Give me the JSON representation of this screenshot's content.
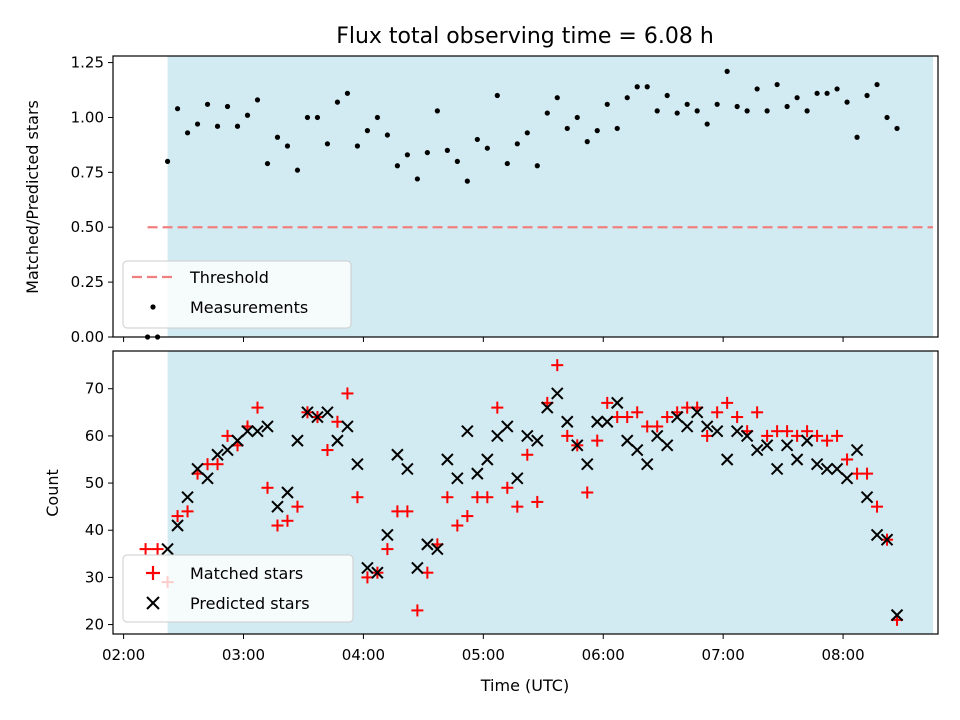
{
  "chart_data": [
    {
      "type": "scatter",
      "title": "Flux total observing time = 6.08 h",
      "ylabel": "Matched/Predicted stars",
      "xlabel": "",
      "xlim": [
        "02:00",
        "08:45"
      ],
      "ylim": [
        0,
        1.28
      ],
      "y_ticks": [
        "0.00",
        "0.25",
        "0.50",
        "0.75",
        "1.00",
        "1.25"
      ],
      "observing_window": [
        "02:22",
        "08:45"
      ],
      "legend_position": "lower-left",
      "colors": {
        "threshold": "#f08080",
        "measurements": "#000000",
        "window": "#add8e6"
      },
      "threshold": {
        "name": "Threshold",
        "value": 0.5,
        "x": [
          "02:12",
          "08:45"
        ]
      },
      "series": [
        {
          "name": "Measurements",
          "points": [
            [
              "02:12",
              0.0
            ],
            [
              "02:17",
              0.0
            ],
            [
              "02:22",
              0.8
            ],
            [
              "02:27",
              1.04
            ],
            [
              "02:32",
              0.93
            ],
            [
              "02:37",
              0.97
            ],
            [
              "02:42",
              1.06
            ],
            [
              "02:47",
              0.96
            ],
            [
              "02:52",
              1.05
            ],
            [
              "02:57",
              0.96
            ],
            [
              "03:02",
              1.01
            ],
            [
              "03:07",
              1.08
            ],
            [
              "03:12",
              0.79
            ],
            [
              "03:17",
              0.91
            ],
            [
              "03:22",
              0.87
            ],
            [
              "03:27",
              0.76
            ],
            [
              "03:32",
              1.0
            ],
            [
              "03:37",
              1.0
            ],
            [
              "03:42",
              0.88
            ],
            [
              "03:47",
              1.07
            ],
            [
              "03:52",
              1.11
            ],
            [
              "03:57",
              0.87
            ],
            [
              "04:02",
              0.94
            ],
            [
              "04:07",
              1.0
            ],
            [
              "04:12",
              0.92
            ],
            [
              "04:17",
              0.78
            ],
            [
              "04:22",
              0.83
            ],
            [
              "04:27",
              0.72
            ],
            [
              "04:32",
              0.84
            ],
            [
              "04:37",
              1.03
            ],
            [
              "04:42",
              0.85
            ],
            [
              "04:47",
              0.8
            ],
            [
              "04:52",
              0.71
            ],
            [
              "04:57",
              0.9
            ],
            [
              "05:02",
              0.86
            ],
            [
              "05:07",
              1.1
            ],
            [
              "05:12",
              0.79
            ],
            [
              "05:17",
              0.88
            ],
            [
              "05:22",
              0.93
            ],
            [
              "05:27",
              0.78
            ],
            [
              "05:32",
              1.02
            ],
            [
              "05:37",
              1.09
            ],
            [
              "05:42",
              0.95
            ],
            [
              "05:47",
              1.0
            ],
            [
              "05:52",
              0.89
            ],
            [
              "05:57",
              0.94
            ],
            [
              "06:02",
              1.06
            ],
            [
              "06:07",
              0.95
            ],
            [
              "06:12",
              1.09
            ],
            [
              "06:17",
              1.14
            ],
            [
              "06:22",
              1.14
            ],
            [
              "06:27",
              1.03
            ],
            [
              "06:32",
              1.1
            ],
            [
              "06:37",
              1.02
            ],
            [
              "06:42",
              1.06
            ],
            [
              "06:47",
              1.03
            ],
            [
              "06:52",
              0.97
            ],
            [
              "06:57",
              1.06
            ],
            [
              "07:02",
              1.21
            ],
            [
              "07:07",
              1.05
            ],
            [
              "07:12",
              1.03
            ],
            [
              "07:17",
              1.13
            ],
            [
              "07:22",
              1.03
            ],
            [
              "07:27",
              1.15
            ],
            [
              "07:32",
              1.05
            ],
            [
              "07:37",
              1.09
            ],
            [
              "07:42",
              1.03
            ],
            [
              "07:47",
              1.11
            ],
            [
              "07:52",
              1.11
            ],
            [
              "07:57",
              1.13
            ],
            [
              "08:02",
              1.07
            ],
            [
              "08:07",
              0.91
            ],
            [
              "08:12",
              1.1
            ],
            [
              "08:17",
              1.15
            ],
            [
              "08:22",
              1.0
            ],
            [
              "08:27",
              0.95
            ]
          ]
        }
      ]
    },
    {
      "type": "scatter",
      "title": "",
      "xlabel": "Time (UTC)",
      "ylabel": "Count",
      "xlim": [
        "02:00",
        "08:45"
      ],
      "ylim": [
        18,
        78
      ],
      "x_ticks": [
        "02:00",
        "03:00",
        "04:00",
        "05:00",
        "06:00",
        "07:00",
        "08:00"
      ],
      "y_ticks": [
        "20",
        "30",
        "40",
        "50",
        "60",
        "70"
      ],
      "observing_window": [
        "02:22",
        "08:45"
      ],
      "legend_position": "lower-left",
      "colors": {
        "matched": "#ff0000",
        "predicted": "#000000",
        "window": "#add8e6"
      },
      "series": [
        {
          "name": "Matched stars",
          "marker": "plus",
          "points": [
            [
              "02:11",
              36
            ],
            [
              "02:17",
              36
            ],
            [
              "02:22",
              29
            ],
            [
              "02:27",
              43
            ],
            [
              "02:32",
              44
            ],
            [
              "02:37",
              52
            ],
            [
              "02:42",
              54
            ],
            [
              "02:47",
              54
            ],
            [
              "02:52",
              60
            ],
            [
              "02:57",
              58
            ],
            [
              "03:02",
              62
            ],
            [
              "03:07",
              66
            ],
            [
              "03:12",
              49
            ],
            [
              "03:17",
              41
            ],
            [
              "03:22",
              42
            ],
            [
              "03:27",
              45
            ],
            [
              "03:32",
              65
            ],
            [
              "03:37",
              64
            ],
            [
              "03:42",
              57
            ],
            [
              "03:47",
              63
            ],
            [
              "03:52",
              69
            ],
            [
              "03:57",
              47
            ],
            [
              "04:02",
              30
            ],
            [
              "04:07",
              31
            ],
            [
              "04:12",
              36
            ],
            [
              "04:17",
              44
            ],
            [
              "04:22",
              44
            ],
            [
              "04:27",
              23
            ],
            [
              "04:32",
              31
            ],
            [
              "04:37",
              37
            ],
            [
              "04:42",
              47
            ],
            [
              "04:47",
              41
            ],
            [
              "04:52",
              43
            ],
            [
              "04:57",
              47
            ],
            [
              "05:02",
              47
            ],
            [
              "05:07",
              66
            ],
            [
              "05:12",
              49
            ],
            [
              "05:17",
              45
            ],
            [
              "05:22",
              56
            ],
            [
              "05:27",
              46
            ],
            [
              "05:32",
              67
            ],
            [
              "05:37",
              75
            ],
            [
              "05:42",
              60
            ],
            [
              "05:47",
              58
            ],
            [
              "05:52",
              48
            ],
            [
              "05:57",
              59
            ],
            [
              "06:02",
              67
            ],
            [
              "06:07",
              64
            ],
            [
              "06:12",
              64
            ],
            [
              "06:17",
              65
            ],
            [
              "06:22",
              62
            ],
            [
              "06:27",
              62
            ],
            [
              "06:32",
              64
            ],
            [
              "06:37",
              65
            ],
            [
              "06:42",
              66
            ],
            [
              "06:47",
              66
            ],
            [
              "06:52",
              60
            ],
            [
              "06:57",
              65
            ],
            [
              "07:02",
              67
            ],
            [
              "07:07",
              64
            ],
            [
              "07:12",
              61
            ],
            [
              "07:17",
              65
            ],
            [
              "07:22",
              60
            ],
            [
              "07:27",
              61
            ],
            [
              "07:32",
              61
            ],
            [
              "07:37",
              60
            ],
            [
              "07:42",
              61
            ],
            [
              "07:47",
              60
            ],
            [
              "07:52",
              59
            ],
            [
              "07:57",
              60
            ],
            [
              "08:02",
              55
            ],
            [
              "08:07",
              52
            ],
            [
              "08:12",
              52
            ],
            [
              "08:17",
              45
            ],
            [
              "08:22",
              38
            ],
            [
              "08:27",
              21
            ]
          ]
        },
        {
          "name": "Predicted stars",
          "marker": "x",
          "points": [
            [
              "02:22",
              36
            ],
            [
              "02:27",
              41
            ],
            [
              "02:32",
              47
            ],
            [
              "02:37",
              53
            ],
            [
              "02:42",
              51
            ],
            [
              "02:47",
              56
            ],
            [
              "02:52",
              57
            ],
            [
              "02:57",
              59
            ],
            [
              "03:02",
              61
            ],
            [
              "03:07",
              61
            ],
            [
              "03:12",
              62
            ],
            [
              "03:17",
              45
            ],
            [
              "03:22",
              48
            ],
            [
              "03:27",
              59
            ],
            [
              "03:32",
              65
            ],
            [
              "03:37",
              64
            ],
            [
              "03:42",
              65
            ],
            [
              "03:47",
              59
            ],
            [
              "03:52",
              62
            ],
            [
              "03:57",
              54
            ],
            [
              "04:02",
              32
            ],
            [
              "04:07",
              31
            ],
            [
              "04:12",
              39
            ],
            [
              "04:17",
              56
            ],
            [
              "04:22",
              53
            ],
            [
              "04:27",
              32
            ],
            [
              "04:32",
              37
            ],
            [
              "04:37",
              36
            ],
            [
              "04:42",
              55
            ],
            [
              "04:47",
              51
            ],
            [
              "04:52",
              61
            ],
            [
              "04:57",
              52
            ],
            [
              "05:02",
              55
            ],
            [
              "05:07",
              60
            ],
            [
              "05:12",
              62
            ],
            [
              "05:17",
              51
            ],
            [
              "05:22",
              60
            ],
            [
              "05:27",
              59
            ],
            [
              "05:32",
              66
            ],
            [
              "05:37",
              69
            ],
            [
              "05:42",
              63
            ],
            [
              "05:47",
              58
            ],
            [
              "05:52",
              54
            ],
            [
              "05:57",
              63
            ],
            [
              "06:02",
              63
            ],
            [
              "06:07",
              67
            ],
            [
              "06:12",
              59
            ],
            [
              "06:17",
              57
            ],
            [
              "06:22",
              54
            ],
            [
              "06:27",
              60
            ],
            [
              "06:32",
              58
            ],
            [
              "06:37",
              64
            ],
            [
              "06:42",
              62
            ],
            [
              "06:47",
              65
            ],
            [
              "06:52",
              62
            ],
            [
              "06:57",
              61
            ],
            [
              "07:02",
              55
            ],
            [
              "07:07",
              61
            ],
            [
              "07:12",
              60
            ],
            [
              "07:17",
              57
            ],
            [
              "07:22",
              58
            ],
            [
              "07:27",
              53
            ],
            [
              "07:32",
              58
            ],
            [
              "07:37",
              55
            ],
            [
              "07:42",
              59
            ],
            [
              "07:47",
              54
            ],
            [
              "07:52",
              53
            ],
            [
              "07:57",
              53
            ],
            [
              "08:02",
              51
            ],
            [
              "08:07",
              57
            ],
            [
              "08:12",
              47
            ],
            [
              "08:17",
              39
            ],
            [
              "08:22",
              38
            ],
            [
              "08:27",
              22
            ]
          ]
        }
      ]
    }
  ]
}
